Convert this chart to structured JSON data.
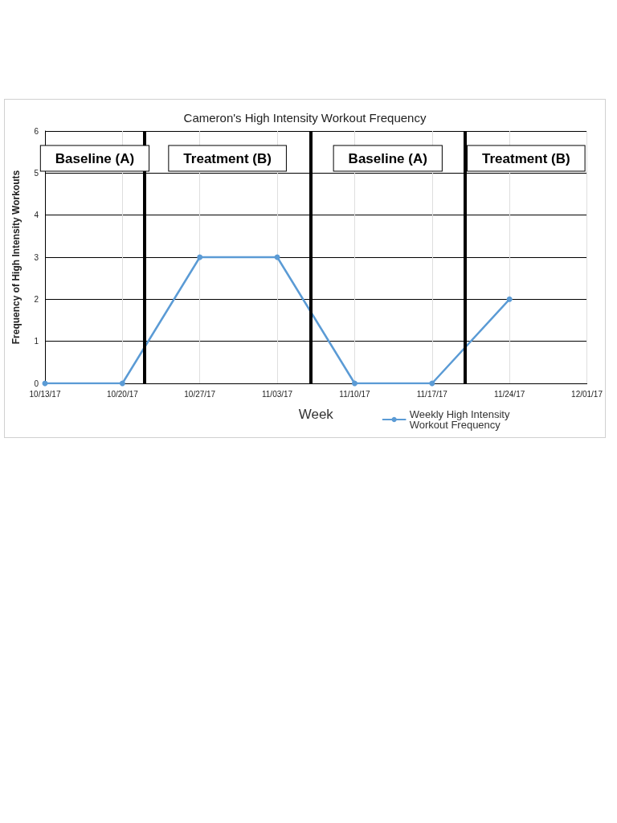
{
  "chart_data": {
    "type": "line",
    "title": "Cameron's High Intensity Workout Frequency",
    "xlabel": "Week",
    "ylabel": "Frequency of High Intensity Workouts",
    "x": [
      "--10-13",
      "--10-20",
      "--10-27",
      "--11-03",
      "--11-10",
      "--11-17",
      "--11-24"
    ],
    "series": [
      {
        "name": "Weekly High Intensity Workout Frequency",
        "color": "#5b9bd5",
        "values": [
          0,
          0,
          3,
          3,
          0,
          0,
          2
        ]
      }
    ],
    "xlim": [
      "--10-13",
      "--12-01"
    ],
    "xticks": [
      {
        "value": "--10-13",
        "label": "10/13/17"
      },
      {
        "value": "--10-20",
        "label": "10/20/17"
      },
      {
        "value": "--10-27",
        "label": "10/27/17"
      },
      {
        "value": "--11-03",
        "label": "11/03/17"
      },
      {
        "value": "--11-10",
        "label": "11/10/17"
      },
      {
        "value": "--11-17",
        "label": "11/17/17"
      },
      {
        "value": "--11-24",
        "label": "11/24/17"
      },
      {
        "value": "--12-01",
        "label": "12/01/17"
      }
    ],
    "ylim": [
      0,
      6
    ],
    "yticks": [
      0,
      1,
      2,
      3,
      4,
      5,
      6
    ],
    "ref_lines": [
      {
        "axis": "x",
        "value": "--10-22",
        "color": "#000000"
      },
      {
        "axis": "x",
        "value": "--11-06",
        "color": "#000000"
      },
      {
        "axis": "x",
        "value": "--11-20",
        "color": "#000000"
      }
    ],
    "annotations": [
      "Baseline (A)",
      "Treatment (B)",
      "Baseline (A)",
      "Treatment (B)"
    ],
    "grid": true,
    "legend": "bottom right",
    "marker": "circle",
    "line_style": "solid"
  }
}
